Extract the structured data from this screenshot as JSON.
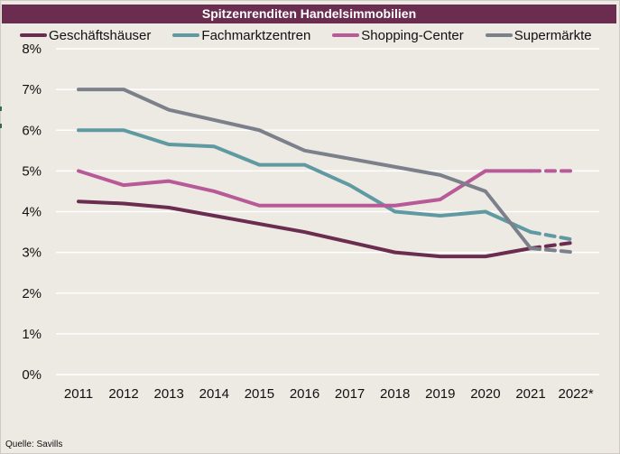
{
  "title": "Spitzenrenditen Handelsimmobilien",
  "source": "Quelle: Savills",
  "chart_data": {
    "type": "line",
    "title": "Spitzenrenditen Handelsimmobilien",
    "xlabel": "",
    "ylabel": "",
    "categories": [
      "2011",
      "2012",
      "2013",
      "2014",
      "2015",
      "2016",
      "2017",
      "2018",
      "2019",
      "2020",
      "2021",
      "2022*"
    ],
    "forecast_from_index": 10,
    "ylim": [
      0,
      8
    ],
    "yticks": [
      0,
      1,
      2,
      3,
      4,
      5,
      6,
      7,
      8
    ],
    "ytick_labels": [
      "0%",
      "1%",
      "2%",
      "3%",
      "4%",
      "5%",
      "6%",
      "7%",
      "8%"
    ],
    "grid": true,
    "legend_position": "top",
    "series": [
      {
        "name": "Geschäftshäuser",
        "color": "#6a2d4f",
        "values": [
          4.25,
          4.2,
          4.1,
          3.9,
          3.7,
          3.5,
          3.25,
          3.0,
          2.9,
          2.9,
          3.1,
          3.25
        ]
      },
      {
        "name": "Fachmarktzentren",
        "color": "#5f9aa3",
        "values": [
          6.0,
          6.0,
          5.65,
          5.6,
          5.15,
          5.15,
          4.65,
          4.0,
          3.9,
          4.0,
          3.5,
          3.3
        ]
      },
      {
        "name": "Shopping-Center",
        "color": "#b85a98",
        "values": [
          5.0,
          4.65,
          4.75,
          4.5,
          4.15,
          4.15,
          4.15,
          4.15,
          4.3,
          5.0,
          5.0,
          5.0
        ]
      },
      {
        "name": "Supermärkte",
        "color": "#7b808a",
        "values": [
          7.0,
          7.0,
          6.5,
          6.25,
          6.0,
          5.5,
          5.3,
          5.1,
          4.9,
          4.5,
          3.1,
          3.0
        ]
      }
    ]
  }
}
